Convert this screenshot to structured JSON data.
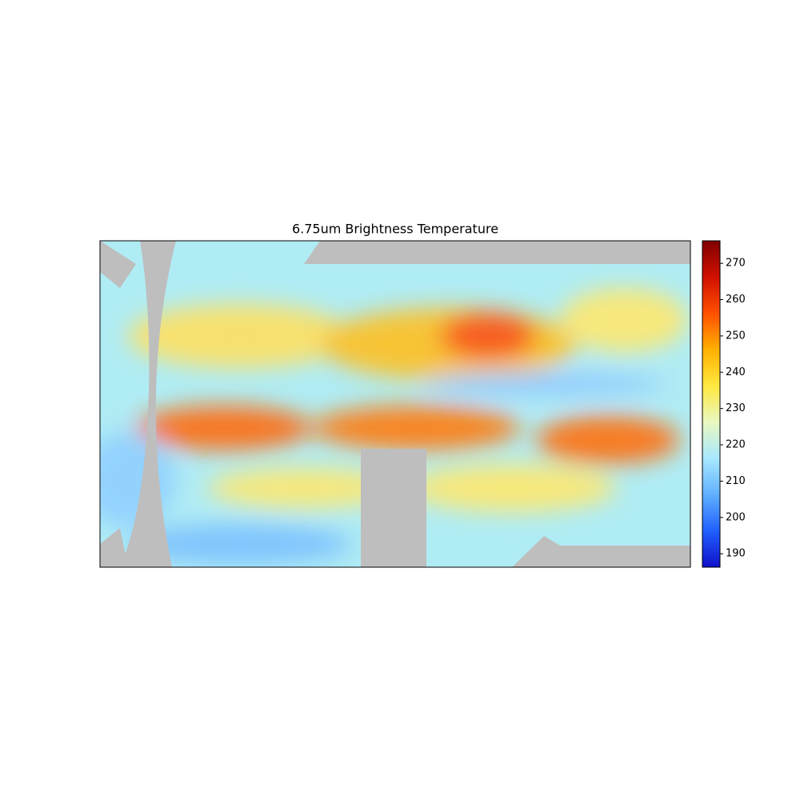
{
  "chart_data": {
    "type": "image-map",
    "title": "6.75um Brightness Temperature",
    "colorbar": {
      "ylim": [
        186.3,
        276.2
      ],
      "yticks": [
        190,
        200,
        210,
        220,
        230,
        240,
        250,
        260,
        270
      ],
      "colors": [
        "#1010c8",
        "#2060ff",
        "#60b0ff",
        "#a8e8ff",
        "#e8f8c0",
        "#ffe840",
        "#ffb000",
        "#ff5000",
        "#d01000",
        "#800000"
      ]
    }
  }
}
